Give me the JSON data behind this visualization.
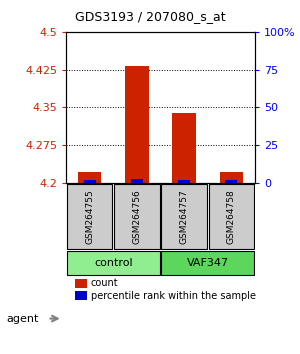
{
  "title": "GDS3193 / 207080_s_at",
  "samples": [
    "GSM264755",
    "GSM264756",
    "GSM264757",
    "GSM264758"
  ],
  "groups": [
    "control",
    "control",
    "VAF347",
    "VAF347"
  ],
  "group_labels": [
    "control",
    "VAF347"
  ],
  "group_colors": [
    "#90EE90",
    "#4CBB4C"
  ],
  "ylim": [
    4.2,
    4.5
  ],
  "yticks": [
    4.2,
    4.275,
    4.35,
    4.425,
    4.5
  ],
  "ytick_labels": [
    "4.2",
    "4.275",
    "4.35",
    "4.425",
    "4.5"
  ],
  "y2ticks": [
    0,
    25,
    50,
    75,
    100
  ],
  "y2tick_labels": [
    "0",
    "25",
    "50",
    "75",
    "100%"
  ],
  "bar_values": [
    4.222,
    4.432,
    4.338,
    4.222
  ],
  "bar_base": 4.2,
  "percentile_values": [
    4.205,
    4.208,
    4.205,
    4.205
  ],
  "bar_color": "#CC2200",
  "percentile_color": "#0000CC",
  "bar_width": 0.5,
  "grid_color": "#000000",
  "sample_box_color": "#CCCCCC",
  "legend_count_color": "#CC2200",
  "legend_percentile_color": "#0000CC",
  "legend_count_label": "count",
  "legend_percentile_label": "percentile rank within the sample",
  "agent_label": "agent",
  "ylabel_color": "#CC2200",
  "y2label_color": "#0000FF"
}
